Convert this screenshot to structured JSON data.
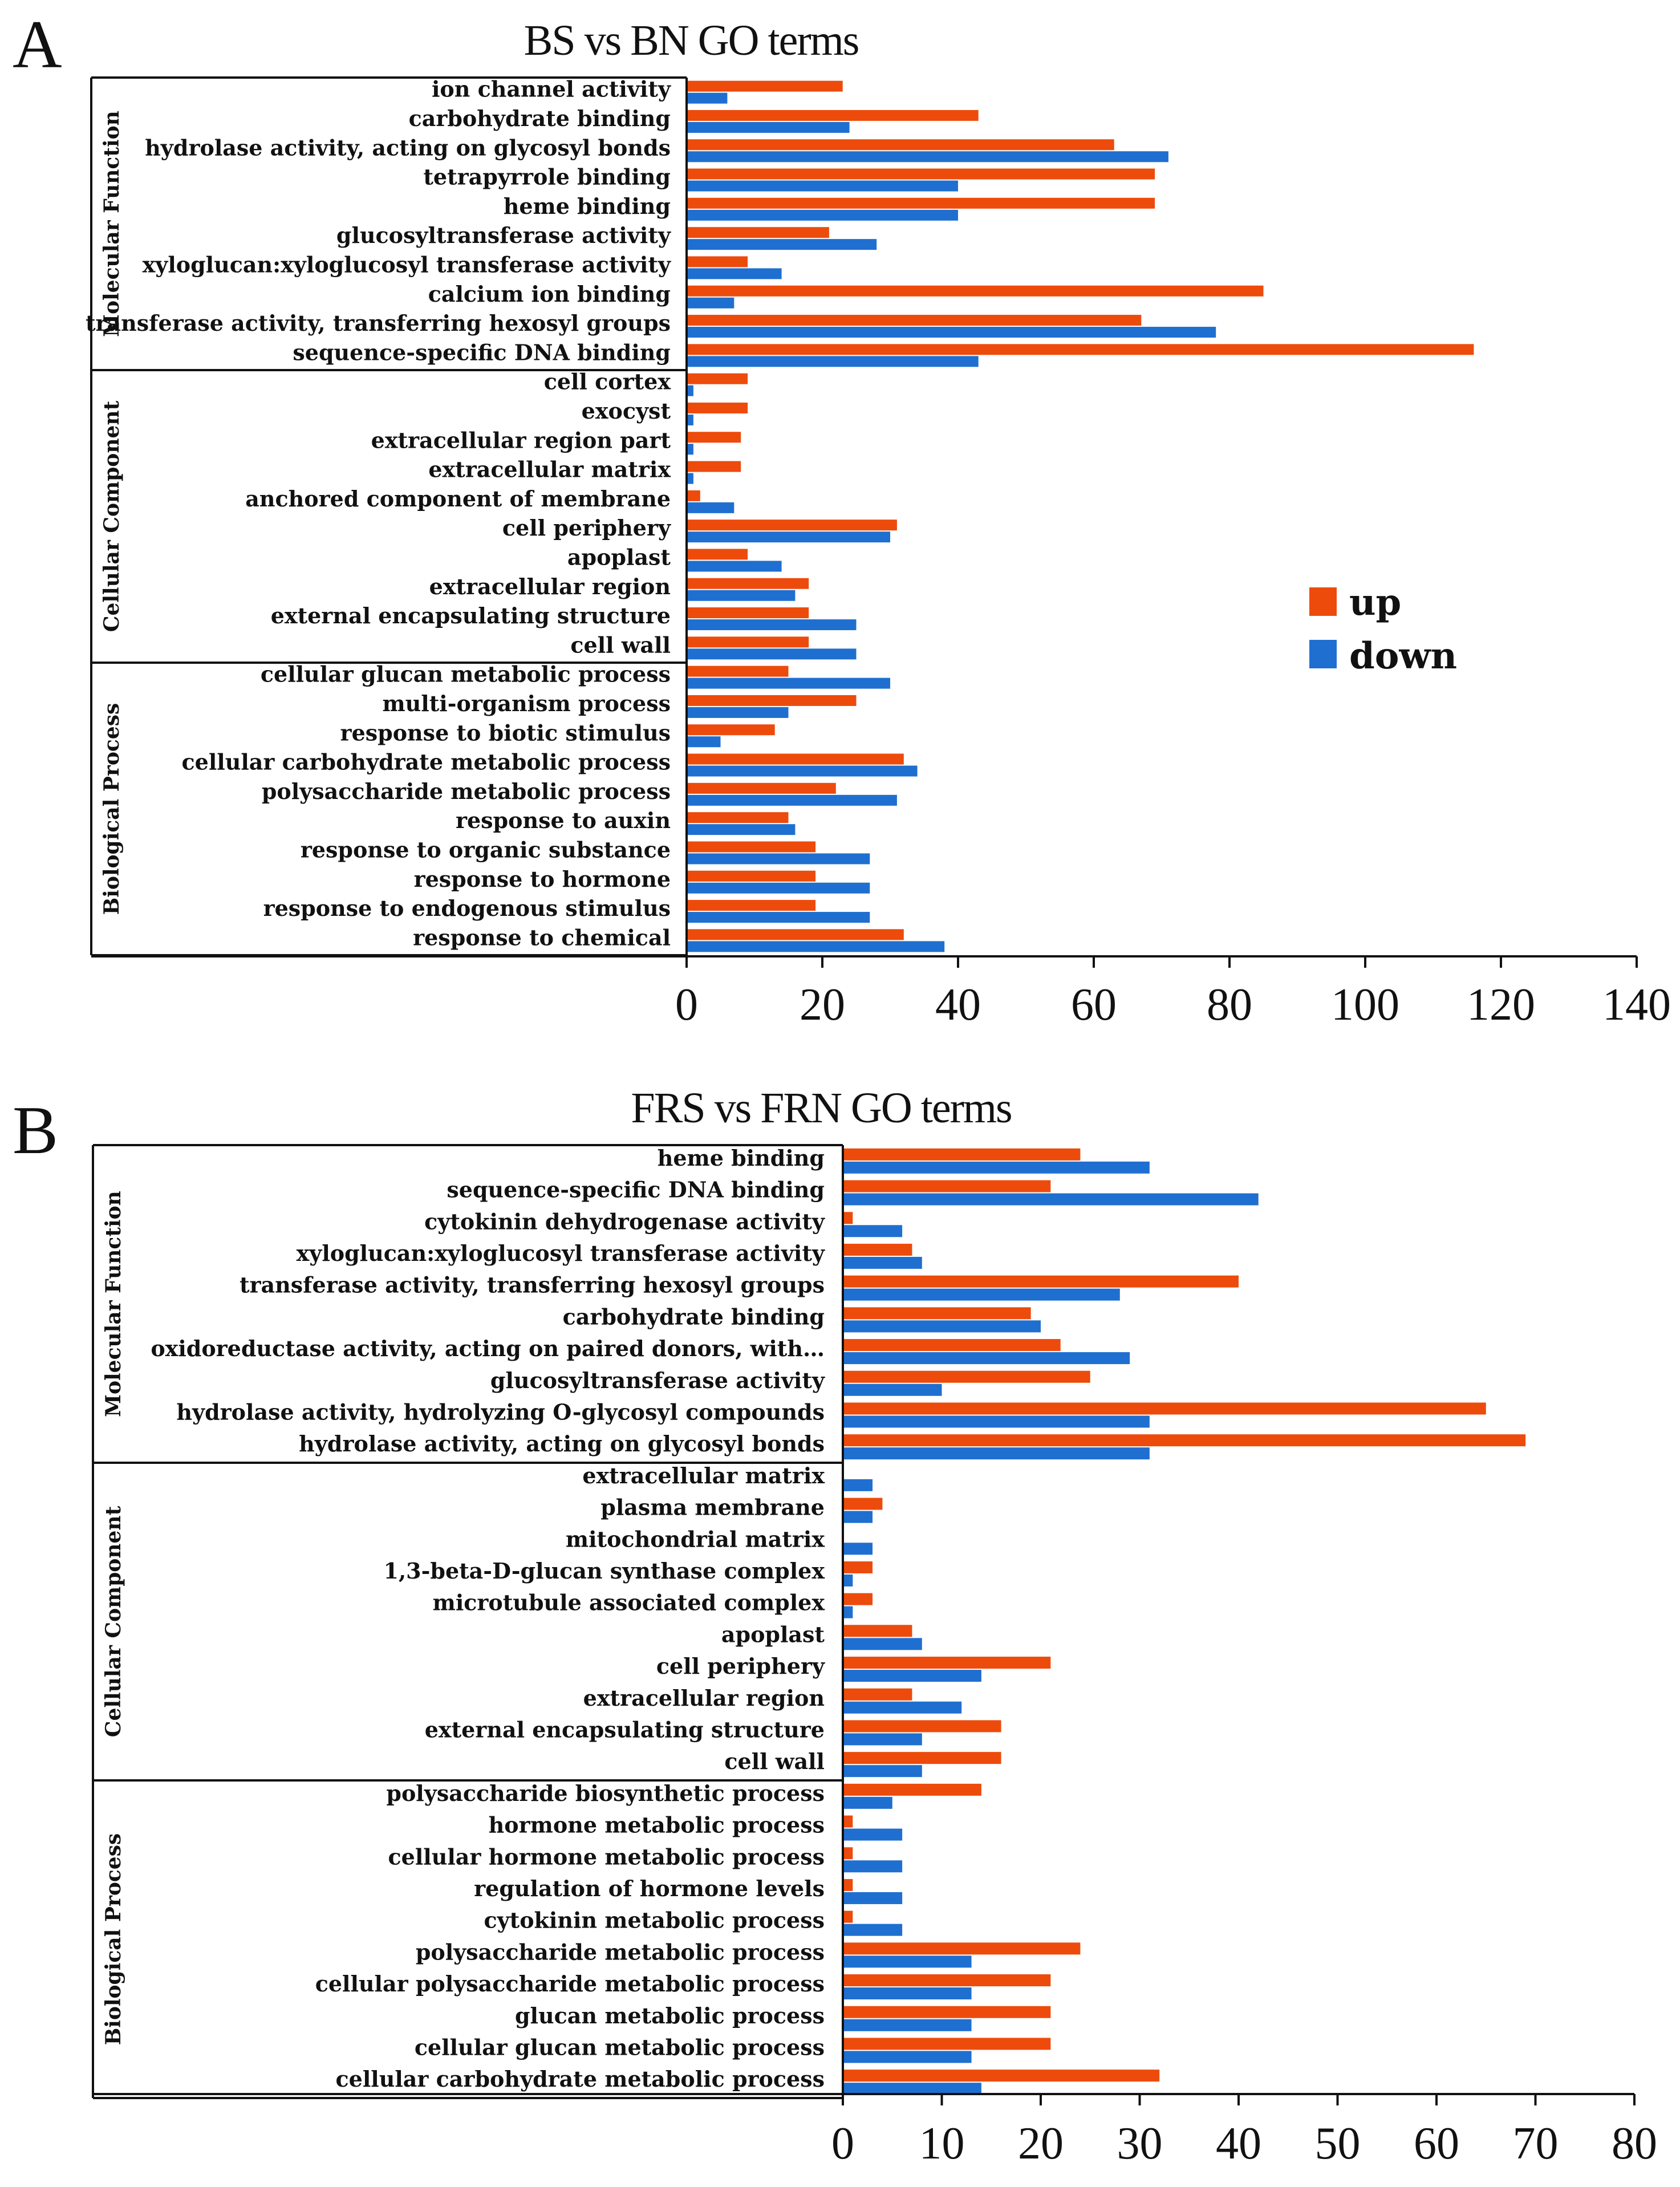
{
  "colors": {
    "up": "#ed4b0c",
    "down": "#1f6fd0"
  },
  "legend": {
    "up": "up",
    "down": "down"
  },
  "chart_data": [
    {
      "type": "bar",
      "panel": "A",
      "title": "BS vs BN GO terms",
      "orientation": "horizontal",
      "xlim": [
        0,
        140
      ],
      "xticks": [
        0,
        20,
        40,
        60,
        80,
        100,
        120,
        140
      ],
      "groups": [
        {
          "name": "Molecular Function",
          "terms": [
            {
              "label": "ion channel activity",
              "up": 23,
              "down": 6
            },
            {
              "label": "carbohydrate binding",
              "up": 43,
              "down": 24
            },
            {
              "label": "hydrolase activity, acting on glycosyl bonds",
              "up": 63,
              "down": 71
            },
            {
              "label": "tetrapyrrole binding",
              "up": 69,
              "down": 40
            },
            {
              "label": "heme binding",
              "up": 69,
              "down": 40
            },
            {
              "label": "glucosyltransferase activity",
              "up": 21,
              "down": 28
            },
            {
              "label": "xyloglucan:xyloglucosyl transferase activity",
              "up": 9,
              "down": 14
            },
            {
              "label": "calcium ion binding",
              "up": 85,
              "down": 7
            },
            {
              "label": "transferase activity, transferring hexosyl groups",
              "up": 67,
              "down": 78
            },
            {
              "label": "sequence-specific DNA binding",
              "up": 116,
              "down": 43
            }
          ]
        },
        {
          "name": "Cellular Component",
          "terms": [
            {
              "label": "cell cortex",
              "up": 9,
              "down": 1
            },
            {
              "label": "exocyst",
              "up": 9,
              "down": 1
            },
            {
              "label": "extracellular region part",
              "up": 8,
              "down": 1
            },
            {
              "label": "extracellular matrix",
              "up": 8,
              "down": 1
            },
            {
              "label": "anchored component of membrane",
              "up": 2,
              "down": 7
            },
            {
              "label": "cell periphery",
              "up": 31,
              "down": 30
            },
            {
              "label": "apoplast",
              "up": 9,
              "down": 14
            },
            {
              "label": "extracellular region",
              "up": 18,
              "down": 16
            },
            {
              "label": "external encapsulating structure",
              "up": 18,
              "down": 25
            },
            {
              "label": "cell wall",
              "up": 18,
              "down": 25
            }
          ]
        },
        {
          "name": "Biological Process",
          "terms": [
            {
              "label": "cellular glucan metabolic process",
              "up": 15,
              "down": 30
            },
            {
              "label": "multi-organism process",
              "up": 25,
              "down": 15
            },
            {
              "label": "response to biotic stimulus",
              "up": 13,
              "down": 5
            },
            {
              "label": "cellular carbohydrate metabolic process",
              "up": 32,
              "down": 34
            },
            {
              "label": "polysaccharide metabolic process",
              "up": 22,
              "down": 31
            },
            {
              "label": "response to auxin",
              "up": 15,
              "down": 16
            },
            {
              "label": "response to organic substance",
              "up": 19,
              "down": 27
            },
            {
              "label": "response to hormone",
              "up": 19,
              "down": 27
            },
            {
              "label": "response to endogenous stimulus",
              "up": 19,
              "down": 27
            },
            {
              "label": "response to chemical",
              "up": 32,
              "down": 38
            }
          ]
        }
      ]
    },
    {
      "type": "bar",
      "panel": "B",
      "title": "FRS vs FRN GO terms",
      "orientation": "horizontal",
      "xlim": [
        0,
        80
      ],
      "xticks": [
        0,
        10,
        20,
        30,
        40,
        50,
        60,
        70,
        80
      ],
      "groups": [
        {
          "name": "Molecular Function",
          "terms": [
            {
              "label": "heme binding",
              "up": 24,
              "down": 31
            },
            {
              "label": "sequence-specific DNA binding",
              "up": 21,
              "down": 42
            },
            {
              "label": "cytokinin dehydrogenase activity",
              "up": 1,
              "down": 6
            },
            {
              "label": "xyloglucan:xyloglucosyl transferase activity",
              "up": 7,
              "down": 8
            },
            {
              "label": "transferase activity, transferring hexosyl groups",
              "up": 40,
              "down": 28
            },
            {
              "label": "carbohydrate binding",
              "up": 19,
              "down": 20
            },
            {
              "label": "oxidoreductase activity, acting on paired donors, with…",
              "up": 22,
              "down": 29
            },
            {
              "label": "glucosyltransferase activity",
              "up": 25,
              "down": 10
            },
            {
              "label": "hydrolase activity, hydrolyzing O-glycosyl compounds",
              "up": 65,
              "down": 31
            },
            {
              "label": "hydrolase activity, acting on glycosyl bonds",
              "up": 69,
              "down": 31
            }
          ]
        },
        {
          "name": "Cellular Component",
          "terms": [
            {
              "label": "extracellular matrix",
              "up": 0,
              "down": 3
            },
            {
              "label": "plasma membrane",
              "up": 4,
              "down": 3
            },
            {
              "label": "mitochondrial matrix",
              "up": 0,
              "down": 3
            },
            {
              "label": "1,3-beta-D-glucan synthase complex",
              "up": 3,
              "down": 1
            },
            {
              "label": "microtubule associated complex",
              "up": 3,
              "down": 1
            },
            {
              "label": "apoplast",
              "up": 7,
              "down": 8
            },
            {
              "label": "cell periphery",
              "up": 21,
              "down": 14
            },
            {
              "label": "extracellular region",
              "up": 7,
              "down": 12
            },
            {
              "label": "external encapsulating structure",
              "up": 16,
              "down": 8
            },
            {
              "label": "cell wall",
              "up": 16,
              "down": 8
            }
          ]
        },
        {
          "name": "Biological Process",
          "terms": [
            {
              "label": "polysaccharide biosynthetic process",
              "up": 14,
              "down": 5
            },
            {
              "label": "hormone metabolic process",
              "up": 1,
              "down": 6
            },
            {
              "label": "cellular hormone metabolic process",
              "up": 1,
              "down": 6
            },
            {
              "label": "regulation of hormone levels",
              "up": 1,
              "down": 6
            },
            {
              "label": "cytokinin metabolic process",
              "up": 1,
              "down": 6
            },
            {
              "label": "polysaccharide metabolic process",
              "up": 24,
              "down": 13
            },
            {
              "label": "cellular polysaccharide metabolic process",
              "up": 21,
              "down": 13
            },
            {
              "label": "glucan metabolic process",
              "up": 21,
              "down": 13
            },
            {
              "label": "cellular glucan metabolic process",
              "up": 21,
              "down": 13
            },
            {
              "label": "cellular carbohydrate metabolic process",
              "up": 32,
              "down": 14
            }
          ]
        }
      ]
    }
  ]
}
